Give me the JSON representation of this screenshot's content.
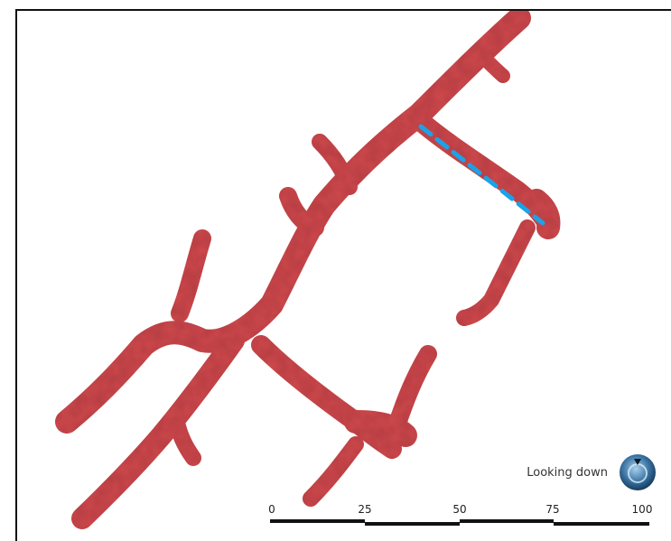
{
  "viewer": {
    "orientation_label": "Looking down",
    "compass_icon": "compass-icon",
    "scale_labels": [
      "0",
      "25",
      "50",
      "75",
      "100"
    ],
    "colors": {
      "model_fill": "#cf4a4e",
      "model_stroke": "#b63d40",
      "measure_line": "#1aa3e8",
      "compass_outer": "#1f4f7a",
      "compass_inner": "#6fa8d4"
    }
  }
}
